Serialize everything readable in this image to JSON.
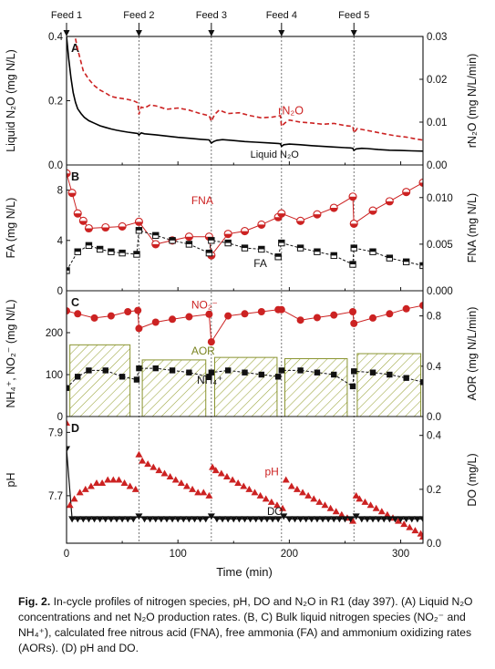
{
  "figure": {
    "feeds": [
      "Feed 1",
      "Feed 2",
      "Feed 3",
      "Feed 4",
      "Feed 5"
    ],
    "feed_times": [
      0,
      65,
      130,
      193,
      258
    ],
    "xlabel": "Time (min)",
    "caption_label": "Fig. 2.",
    "caption_text": "In-cycle profiles of nitrogen species, pH, DO and N₂O in R1 (day 397). (A) Liquid N₂O concentrations and net N₂O production rates. (B, C) Bulk liquid nitrogen species (NO₂⁻ and NH₄⁺), calculated free nitrous acid (FNA), free ammonia (FA) and ammonium oxidizing rates (AORs). (D) pH and DO."
  },
  "chart_data": [
    {
      "panel": "A",
      "type": "line",
      "xlim": [
        0,
        320
      ],
      "x_ticks": [
        0,
        100,
        200,
        300
      ],
      "ylabel": "Liquid N₂O (mg N/L)",
      "ylim": [
        0,
        0.4
      ],
      "y_ticks": [
        "0.0",
        "0.2",
        "0.4"
      ],
      "ylabel_right": "rN₂O (mg N/L/min)",
      "ylim_right": [
        0,
        0.03
      ],
      "y_ticks_right": [
        "0.00",
        "0.01",
        "0.02",
        "0.03"
      ],
      "colors": {
        "liquid": "#000000",
        "rate": "#cc2222"
      },
      "series": [
        {
          "name": "Liquid N₂O",
          "axis": "left",
          "x": [
            0,
            2,
            4,
            6,
            8,
            10,
            13,
            16,
            20,
            25,
            30,
            35,
            40,
            45,
            50,
            55,
            60,
            64,
            65,
            67,
            70,
            80,
            90,
            100,
            110,
            120,
            128,
            130,
            132,
            135,
            140,
            150,
            160,
            170,
            180,
            190,
            192,
            193,
            195,
            200,
            210,
            220,
            230,
            240,
            250,
            255,
            257,
            258,
            260,
            265,
            270,
            280,
            290,
            300,
            310,
            320
          ],
          "y": [
            0.4,
            0.33,
            0.27,
            0.225,
            0.195,
            0.175,
            0.16,
            0.148,
            0.138,
            0.13,
            0.122,
            0.117,
            0.112,
            0.108,
            0.105,
            0.102,
            0.1,
            0.098,
            0.093,
            0.1,
            0.097,
            0.094,
            0.09,
            0.086,
            0.083,
            0.08,
            0.078,
            0.068,
            0.073,
            0.077,
            0.079,
            0.076,
            0.073,
            0.071,
            0.069,
            0.067,
            0.066,
            0.058,
            0.063,
            0.065,
            0.063,
            0.06,
            0.058,
            0.056,
            0.054,
            0.053,
            0.052,
            0.045,
            0.05,
            0.052,
            0.051,
            0.048,
            0.046,
            0.045,
            0.044,
            0.043
          ]
        },
        {
          "name": "rN₂O",
          "axis": "right",
          "x": [
            8,
            10,
            12,
            15,
            20,
            25,
            30,
            35,
            40,
            45,
            50,
            55,
            60,
            64,
            65,
            67,
            70,
            75,
            80,
            90,
            100,
            110,
            120,
            128,
            130,
            133,
            137,
            145,
            155,
            165,
            175,
            185,
            192,
            193,
            196,
            200,
            210,
            220,
            230,
            240,
            250,
            257,
            258,
            261,
            265,
            275,
            285,
            295,
            305,
            315,
            320
          ],
          "y": [
            0.0295,
            0.027,
            0.025,
            0.022,
            0.02,
            0.0185,
            0.0175,
            0.0168,
            0.016,
            0.0157,
            0.0155,
            0.0153,
            0.015,
            0.0145,
            0.0118,
            0.0135,
            0.0133,
            0.014,
            0.0138,
            0.013,
            0.0133,
            0.0128,
            0.012,
            0.0115,
            0.0102,
            0.0118,
            0.0128,
            0.012,
            0.0122,
            0.0115,
            0.011,
            0.0112,
            0.0115,
            0.009,
            0.0098,
            0.0105,
            0.01,
            0.0098,
            0.0095,
            0.0097,
            0.0092,
            0.009,
            0.0075,
            0.0085,
            0.0083,
            0.0078,
            0.0073,
            0.0068,
            0.0065,
            0.006,
            0.0058
          ]
        }
      ],
      "labels": {
        "rate": "rN₂O",
        "liquid": "Liquid N₂O"
      }
    },
    {
      "panel": "B",
      "type": "line",
      "xlim": [
        0,
        320
      ],
      "ylabel": "FA (mg N/L)",
      "ylim": [
        0,
        10
      ],
      "y_ticks": [
        "0",
        "4",
        "8"
      ],
      "ylabel_right": "FNA (mg N/L)",
      "ylim_right": [
        0,
        0.0135
      ],
      "y_ticks_right": [
        "0.000",
        "0.005",
        "0.010"
      ],
      "series": [
        {
          "name": "FA",
          "axis": "left",
          "x": [
            0,
            10,
            20,
            30,
            40,
            50,
            63,
            65,
            80,
            95,
            110,
            128,
            130,
            145,
            160,
            175,
            190,
            193,
            210,
            225,
            240,
            257,
            258,
            275,
            290,
            305,
            320
          ],
          "y": [
            1.6,
            3.1,
            3.6,
            3.3,
            3.1,
            3.0,
            2.9,
            4.8,
            4.4,
            4.0,
            3.7,
            3.0,
            4.0,
            3.8,
            3.4,
            3.3,
            2.7,
            3.8,
            3.4,
            3.1,
            2.8,
            2.1,
            3.4,
            3.1,
            2.6,
            2.3,
            2.0
          ]
        },
        {
          "name": "FNA",
          "axis": "right",
          "x": [
            0,
            5,
            10,
            15,
            20,
            35,
            50,
            65,
            80,
            95,
            110,
            128,
            130,
            145,
            160,
            175,
            190,
            193,
            210,
            225,
            240,
            257,
            258,
            275,
            290,
            305,
            320
          ],
          "y": [
            0.0126,
            0.0105,
            0.0083,
            0.0075,
            0.0067,
            0.0068,
            0.0069,
            0.0074,
            0.005,
            0.0054,
            0.0058,
            0.0058,
            0.0038,
            0.0061,
            0.0064,
            0.0071,
            0.0079,
            0.0083,
            0.0075,
            0.0082,
            0.0089,
            0.0101,
            0.0072,
            0.0086,
            0.0096,
            0.0106,
            0.0116
          ]
        }
      ],
      "labels": {
        "fna": "FNA",
        "fa": "FA"
      }
    },
    {
      "panel": "C",
      "type": "bar+line",
      "xlim": [
        0,
        320
      ],
      "ylabel": "NH₄⁺, NO₂⁻ (mg N/L)",
      "ylim": [
        0,
        300
      ],
      "y_ticks": [
        "0",
        "100",
        "200"
      ],
      "ylabel_right": "AOR (mg N/L/min)",
      "ylim_right": [
        0,
        1.0
      ],
      "y_ticks_right": [
        "0.0",
        "0.4",
        "0.8"
      ],
      "series": [
        {
          "name": "NO₂⁻",
          "axis": "left",
          "x": [
            0,
            10,
            25,
            40,
            55,
            64,
            65,
            80,
            95,
            110,
            128,
            130,
            145,
            160,
            175,
            190,
            193,
            210,
            225,
            240,
            257,
            258,
            275,
            290,
            305,
            320
          ],
          "y": [
            252,
            245,
            235,
            240,
            250,
            253,
            210,
            225,
            232,
            238,
            244,
            178,
            240,
            245,
            250,
            255,
            255,
            230,
            236,
            242,
            250,
            222,
            235,
            245,
            257,
            265
          ]
        },
        {
          "name": "NH₄⁺",
          "axis": "left",
          "x": [
            0,
            10,
            20,
            35,
            50,
            63,
            65,
            80,
            95,
            110,
            128,
            130,
            145,
            160,
            175,
            190,
            193,
            210,
            225,
            240,
            257,
            258,
            275,
            290,
            305,
            320
          ],
          "y": [
            68,
            95,
            110,
            110,
            95,
            88,
            115,
            115,
            110,
            105,
            95,
            105,
            110,
            105,
            100,
            95,
            110,
            110,
            105,
            100,
            72,
            108,
            105,
            100,
            92,
            82
          ]
        },
        {
          "name": "AOR",
          "axis": "right",
          "type": "bar",
          "x_start": [
            3,
            68,
            133,
            196,
            261
          ],
          "x_end": [
            57,
            125,
            189,
            252,
            318
          ],
          "values": [
            0.57,
            0.45,
            0.47,
            0.46,
            0.5
          ]
        }
      ],
      "labels": {
        "no2": "NO₂⁻",
        "nh4": "NH₄⁺",
        "aor": "AOR"
      }
    },
    {
      "panel": "D",
      "type": "line",
      "xlim": [
        0,
        320
      ],
      "ylabel": "pH",
      "ylim": [
        7.55,
        7.95
      ],
      "y_ticks": [
        "7.7",
        "7.9"
      ],
      "ylabel_right": "DO (mg/L)",
      "ylim_right": [
        0,
        0.47
      ],
      "y_ticks_right": [
        "0.0",
        "0.2",
        "0.4"
      ],
      "series": [
        {
          "name": "pH",
          "axis": "left",
          "x": [
            0,
            3,
            7,
            12,
            17,
            22,
            27,
            32,
            37,
            42,
            47,
            52,
            57,
            62,
            65,
            68,
            73,
            78,
            83,
            88,
            93,
            98,
            103,
            108,
            113,
            118,
            123,
            128,
            131,
            134,
            139,
            144,
            149,
            154,
            159,
            164,
            169,
            174,
            179,
            184,
            189,
            194,
            197,
            202,
            207,
            212,
            217,
            222,
            227,
            232,
            237,
            242,
            247,
            252,
            257,
            260,
            263,
            268,
            273,
            278,
            283,
            288,
            293,
            298,
            303,
            308,
            313,
            318,
            320
          ],
          "y": [
            7.93,
            7.67,
            7.69,
            7.71,
            7.72,
            7.73,
            7.74,
            7.74,
            7.75,
            7.75,
            7.75,
            7.74,
            7.73,
            7.72,
            7.83,
            7.81,
            7.8,
            7.79,
            7.78,
            7.77,
            7.76,
            7.75,
            7.74,
            7.73,
            7.72,
            7.71,
            7.71,
            7.7,
            7.79,
            7.78,
            7.77,
            7.76,
            7.75,
            7.74,
            7.73,
            7.72,
            7.71,
            7.7,
            7.69,
            7.68,
            7.67,
            7.66,
            7.75,
            7.73,
            7.72,
            7.71,
            7.7,
            7.69,
            7.68,
            7.67,
            7.66,
            7.65,
            7.64,
            7.63,
            7.62,
            7.7,
            7.69,
            7.68,
            7.67,
            7.66,
            7.65,
            7.64,
            7.63,
            7.62,
            7.61,
            7.6,
            7.59,
            7.58,
            7.57
          ]
        },
        {
          "name": "DO",
          "axis": "right",
          "x": [
            0,
            5,
            10,
            15,
            20,
            25,
            30,
            35,
            40,
            45,
            50,
            55,
            60,
            65,
            70,
            75,
            80,
            85,
            90,
            95,
            100,
            105,
            110,
            115,
            120,
            125,
            130,
            135,
            140,
            145,
            150,
            155,
            160,
            165,
            170,
            175,
            180,
            185,
            190,
            195,
            200,
            205,
            210,
            215,
            220,
            225,
            230,
            235,
            240,
            245,
            250,
            255,
            260,
            265,
            270,
            275,
            280,
            285,
            290,
            295,
            300,
            305,
            310,
            315,
            320
          ],
          "y": [
            0.35,
            0.09,
            0.09,
            0.09,
            0.09,
            0.09,
            0.09,
            0.09,
            0.09,
            0.09,
            0.09,
            0.09,
            0.09,
            0.1,
            0.09,
            0.09,
            0.09,
            0.09,
            0.09,
            0.09,
            0.09,
            0.09,
            0.09,
            0.09,
            0.09,
            0.09,
            0.1,
            0.09,
            0.09,
            0.09,
            0.09,
            0.09,
            0.09,
            0.09,
            0.09,
            0.09,
            0.09,
            0.09,
            0.09,
            0.1,
            0.09,
            0.09,
            0.09,
            0.09,
            0.09,
            0.09,
            0.09,
            0.09,
            0.09,
            0.09,
            0.09,
            0.09,
            0.1,
            0.09,
            0.09,
            0.09,
            0.09,
            0.09,
            0.09,
            0.09,
            0.09,
            0.09,
            0.09,
            0.09,
            0.09
          ]
        }
      ],
      "labels": {
        "ph": "pH",
        "do": "DO"
      }
    }
  ]
}
